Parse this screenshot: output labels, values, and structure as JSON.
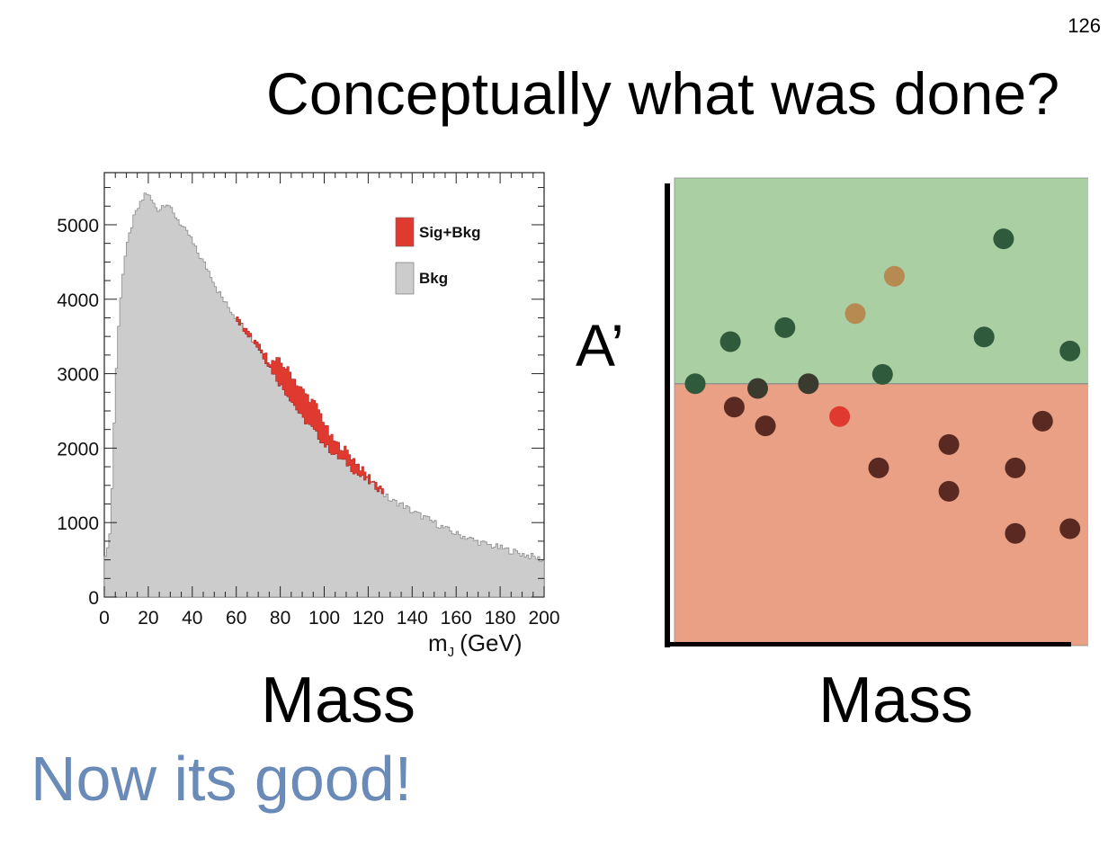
{
  "slide": {
    "page_number": "126",
    "title": "Conceptually what was done?",
    "mass_left": "Mass",
    "mass_right": "Mass",
    "aprime": "A’",
    "remark": "Now its good!"
  },
  "chart_data": [
    {
      "type": "area",
      "title": "",
      "xlabel": "m",
      "xlabel_sub": "J",
      "xlabel_unit": "(GeV)",
      "ylabel": "",
      "xlim": [
        0,
        200
      ],
      "ylim": [
        0,
        5700
      ],
      "xticks": [
        "0",
        "20",
        "40",
        "60",
        "80",
        "100",
        "120",
        "140",
        "160",
        "180",
        "200"
      ],
      "yticks": [
        "0",
        "1000",
        "2000",
        "3000",
        "4000",
        "5000"
      ],
      "legend_position": "top-right",
      "legend": [
        {
          "name": "Sig+Bkg",
          "color": "#e03a30"
        },
        {
          "name": "Bkg",
          "color": "#cccccc"
        }
      ],
      "series": [
        {
          "name": "Bkg",
          "color": "#cccccc",
          "x": [
            1,
            3,
            5,
            7,
            9,
            11,
            13,
            15,
            17,
            19,
            21,
            23,
            25,
            27,
            29,
            31,
            33,
            35,
            37,
            39,
            41,
            43,
            45,
            47,
            49,
            51,
            55,
            60,
            65,
            70,
            75,
            80,
            85,
            90,
            95,
            100,
            105,
            110,
            115,
            120,
            125,
            130,
            135,
            140,
            145,
            150,
            155,
            160,
            165,
            170,
            175,
            180,
            185,
            190,
            195,
            199
          ],
          "y": [
            550,
            1000,
            2800,
            3900,
            4500,
            4800,
            5050,
            5200,
            5300,
            5450,
            5350,
            5250,
            5200,
            5280,
            5300,
            5150,
            5100,
            5000,
            4900,
            4850,
            4700,
            4600,
            4500,
            4400,
            4300,
            4150,
            3950,
            3750,
            3550,
            3350,
            3100,
            2850,
            2650,
            2400,
            2250,
            2050,
            1900,
            1800,
            1650,
            1550,
            1450,
            1300,
            1250,
            1150,
            1080,
            1000,
            920,
            850,
            800,
            740,
            700,
            660,
            620,
            580,
            540,
            500
          ]
        },
        {
          "name": "Sig+Bkg",
          "color": "#e03a30",
          "x": [
            60,
            65,
            70,
            73,
            76,
            79,
            82,
            85,
            88,
            91,
            94,
            97,
            100,
            103,
            106,
            109,
            112,
            115,
            118,
            121,
            124,
            127
          ],
          "y": [
            3750,
            3560,
            3370,
            3250,
            3150,
            3180,
            3100,
            3000,
            2850,
            2750,
            2650,
            2550,
            2350,
            2150,
            2050,
            2000,
            1900,
            1800,
            1680,
            1600,
            1520,
            1460
          ]
        }
      ]
    },
    {
      "type": "scatter",
      "title": "",
      "xlabel": "Mass",
      "ylabel": "A’",
      "regions": [
        {
          "name": "upper",
          "color": "#a9cfa3"
        },
        {
          "name": "lower",
          "color": "#e9a084"
        }
      ],
      "threshold_y": 0.56,
      "xlim": [
        0,
        1
      ],
      "ylim": [
        0,
        1
      ],
      "points": [
        {
          "x": 0.03,
          "y": 0.56,
          "color": "#2f5a3c"
        },
        {
          "x": 0.12,
          "y": 0.65,
          "color": "#2f5a3c"
        },
        {
          "x": 0.26,
          "y": 0.68,
          "color": "#2f5a3c"
        },
        {
          "x": 0.44,
          "y": 0.71,
          "color": "#b68a50"
        },
        {
          "x": 0.54,
          "y": 0.79,
          "color": "#b68a50"
        },
        {
          "x": 0.51,
          "y": 0.58,
          "color": "#2f5a3c"
        },
        {
          "x": 0.77,
          "y": 0.66,
          "color": "#2f5a3c"
        },
        {
          "x": 0.82,
          "y": 0.87,
          "color": "#2f5a3c"
        },
        {
          "x": 0.99,
          "y": 0.63,
          "color": "#2f5a3c"
        },
        {
          "x": 0.32,
          "y": 0.56,
          "color": "#3a3a2e"
        },
        {
          "x": 0.19,
          "y": 0.55,
          "color": "#3a3a2e"
        },
        {
          "x": 0.13,
          "y": 0.51,
          "color": "#5a2a22"
        },
        {
          "x": 0.21,
          "y": 0.47,
          "color": "#5a2a22"
        },
        {
          "x": 0.4,
          "y": 0.49,
          "color": "#e03a30"
        },
        {
          "x": 0.5,
          "y": 0.38,
          "color": "#5a2a22"
        },
        {
          "x": 0.68,
          "y": 0.43,
          "color": "#5a2a22"
        },
        {
          "x": 0.68,
          "y": 0.33,
          "color": "#5a2a22"
        },
        {
          "x": 0.85,
          "y": 0.38,
          "color": "#5a2a22"
        },
        {
          "x": 0.92,
          "y": 0.48,
          "color": "#5a2a22"
        },
        {
          "x": 0.85,
          "y": 0.24,
          "color": "#5a2a22"
        },
        {
          "x": 0.99,
          "y": 0.25,
          "color": "#5a2a22"
        }
      ]
    }
  ]
}
